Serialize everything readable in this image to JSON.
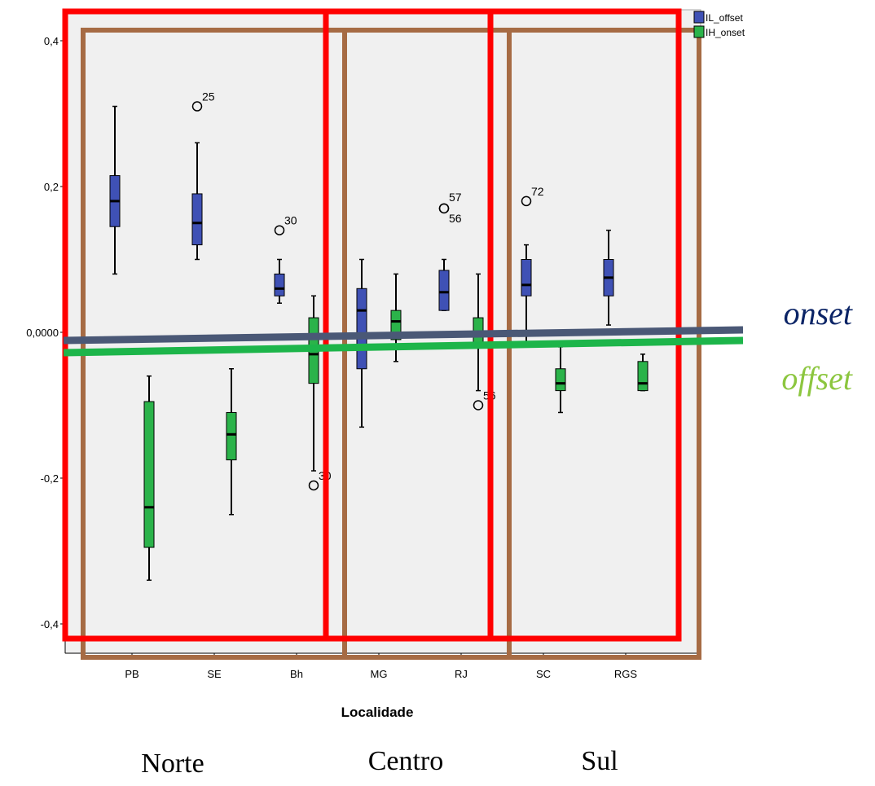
{
  "chart_data": {
    "type": "box",
    "xlabel": "Localidade",
    "ylabel": "",
    "ylim": [
      -0.44,
      0.44
    ],
    "yticks": [
      {
        "value": 0.4,
        "label": "0,4"
      },
      {
        "value": 0.2,
        "label": "0,2"
      },
      {
        "value": 0.0,
        "label": "0,0000"
      },
      {
        "value": -0.2,
        "label": "-0,2"
      },
      {
        "value": -0.4,
        "label": "-0,4"
      }
    ],
    "categories": [
      "PB",
      "SE",
      "Bh",
      "MG",
      "RJ",
      "SC",
      "RGS"
    ],
    "legend_position": "top-right",
    "series": [
      {
        "name": "IL_offset",
        "color": "#3f51b5",
        "boxes": [
          {
            "category": "PB",
            "min": 0.08,
            "q1": 0.145,
            "median": 0.18,
            "q3": 0.215,
            "max": 0.31,
            "outliers": []
          },
          {
            "category": "SE",
            "min": 0.1,
            "q1": 0.12,
            "median": 0.15,
            "q3": 0.19,
            "max": 0.26,
            "outliers": [
              {
                "value": 0.31,
                "label": "25"
              }
            ]
          },
          {
            "category": "Bh",
            "min": 0.04,
            "q1": 0.05,
            "median": 0.06,
            "q3": 0.08,
            "max": 0.1,
            "outliers": [
              {
                "value": 0.14,
                "label": "30"
              }
            ]
          },
          {
            "category": "MG",
            "min": -0.13,
            "q1": -0.05,
            "median": 0.03,
            "q3": 0.06,
            "max": 0.1,
            "outliers": []
          },
          {
            "category": "RJ",
            "min": 0.03,
            "q1": 0.03,
            "median": 0.055,
            "q3": 0.085,
            "max": 0.1,
            "outliers": [
              {
                "value": 0.17,
                "label": "57"
              },
              {
                "value": 0.17,
                "label": "56"
              }
            ]
          },
          {
            "category": "SC",
            "min": -0.02,
            "q1": 0.05,
            "median": 0.065,
            "q3": 0.1,
            "max": 0.12,
            "outliers": [
              {
                "value": 0.18,
                "label": "72"
              }
            ]
          },
          {
            "category": "RGS",
            "min": 0.01,
            "q1": 0.05,
            "median": 0.075,
            "q3": 0.1,
            "max": 0.14,
            "outliers": []
          }
        ]
      },
      {
        "name": "IH_onset",
        "color": "#2bb34a",
        "boxes": [
          {
            "category": "PB",
            "min": -0.34,
            "q1": -0.295,
            "median": -0.24,
            "q3": -0.095,
            "max": -0.06,
            "outliers": []
          },
          {
            "category": "SE",
            "min": -0.25,
            "q1": -0.175,
            "median": -0.14,
            "q3": -0.11,
            "max": -0.05,
            "outliers": []
          },
          {
            "category": "Bh",
            "min": -0.19,
            "q1": -0.07,
            "median": -0.03,
            "q3": 0.02,
            "max": 0.05,
            "outliers": [
              {
                "value": -0.21,
                "label": "30"
              }
            ]
          },
          {
            "category": "MG",
            "min": -0.04,
            "q1": -0.01,
            "median": 0.015,
            "q3": 0.03,
            "max": 0.08,
            "outliers": []
          },
          {
            "category": "RJ",
            "min": -0.08,
            "q1": -0.02,
            "median": -0.005,
            "q3": 0.02,
            "max": 0.08,
            "outliers": [
              {
                "value": -0.1,
                "label": "56"
              }
            ]
          },
          {
            "category": "SC",
            "min": -0.11,
            "q1": -0.08,
            "median": -0.07,
            "q3": -0.05,
            "max": -0.02,
            "outliers": []
          },
          {
            "category": "RGS",
            "min": -0.08,
            "q1": -0.08,
            "median": -0.07,
            "q3": -0.04,
            "max": -0.03,
            "outliers": []
          }
        ]
      }
    ],
    "annotations": {
      "onset_label": "onset",
      "offset_label": "offset",
      "onset_color": "#0b2466",
      "offset_color": "#8cc63f",
      "onset_line_color": "#4a5876",
      "offset_line_color": "#1db54a",
      "region_red_color": "#ff0000",
      "region_brown_color": "#a66b44"
    },
    "regions": [
      "Norte",
      "Centro",
      "Sul"
    ]
  }
}
